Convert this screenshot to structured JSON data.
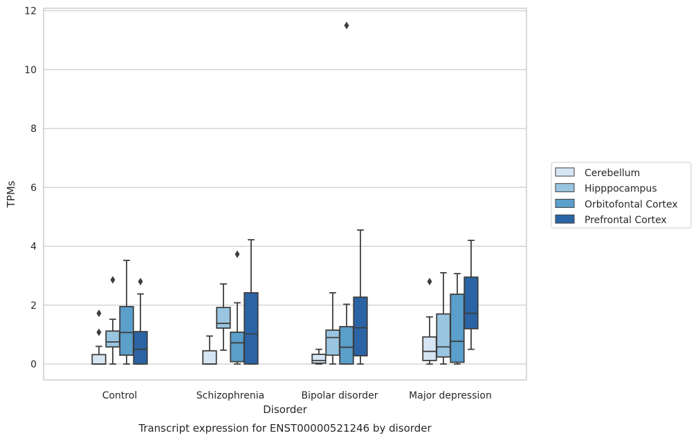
{
  "chart_data": {
    "type": "boxplot",
    "xlabel": "Disorder",
    "ylabel": "TPMs",
    "caption": "Transcript expression for ENST00000521246 by disorder",
    "ylim": [
      -0.55,
      12.1
    ],
    "yticks": [
      0,
      2,
      4,
      6,
      8,
      10,
      12
    ],
    "grid": "horizontal",
    "legend_position": "right",
    "categories": [
      "Control",
      "Schizophrenia",
      "Bipolar disorder",
      "Major depression"
    ],
    "series": [
      {
        "name": "Cerebellum",
        "color": "#d6e5f3",
        "boxes": [
          {
            "whisker_low": 0,
            "q1": 0,
            "median": 0,
            "q3": 0.32,
            "whisker_high": 0.6,
            "outliers": [
              1.08,
              1.72
            ]
          },
          {
            "whisker_low": 0,
            "q1": 0,
            "median": 0,
            "q3": 0.45,
            "whisker_high": 0.95,
            "outliers": []
          },
          {
            "whisker_low": 0,
            "q1": 0.03,
            "median": 0.12,
            "q3": 0.33,
            "whisker_high": 0.5,
            "outliers": []
          },
          {
            "whisker_low": 0,
            "q1": 0.12,
            "median": 0.43,
            "q3": 0.92,
            "whisker_high": 1.6,
            "outliers": [
              2.8
            ]
          }
        ]
      },
      {
        "name": "Hipppocampus",
        "color": "#9ac5e0",
        "boxes": [
          {
            "whisker_low": 0,
            "q1": 0.58,
            "median": 0.75,
            "q3": 1.12,
            "whisker_high": 1.52,
            "outliers": [
              2.86
            ]
          },
          {
            "whisker_low": 0.47,
            "q1": 1.22,
            "median": 1.38,
            "q3": 1.92,
            "whisker_high": 2.72,
            "outliers": []
          },
          {
            "whisker_low": 0,
            "q1": 0.3,
            "median": 0.9,
            "q3": 1.15,
            "whisker_high": 2.42,
            "outliers": []
          },
          {
            "whisker_low": 0,
            "q1": 0.24,
            "median": 0.58,
            "q3": 1.7,
            "whisker_high": 3.1,
            "outliers": []
          }
        ]
      },
      {
        "name": "Orbitofontal Cortex",
        "color": "#5b9fcb",
        "boxes": [
          {
            "whisker_low": 0,
            "q1": 0.3,
            "median": 1.07,
            "q3": 1.95,
            "whisker_high": 3.52,
            "outliers": []
          },
          {
            "whisker_low": 0,
            "q1": 0.08,
            "median": 0.72,
            "q3": 1.08,
            "whisker_high": 2.08,
            "outliers": [
              3.73
            ]
          },
          {
            "whisker_low": 0,
            "q1": 0,
            "median": 0.57,
            "q3": 1.27,
            "whisker_high": 2.03,
            "outliers": [
              11.5
            ]
          },
          {
            "whisker_low": 0,
            "q1": 0.06,
            "median": 0.77,
            "q3": 2.37,
            "whisker_high": 3.07,
            "outliers": []
          }
        ]
      },
      {
        "name": "Prefrontal Cortex",
        "color": "#2a64a5",
        "boxes": [
          {
            "whisker_low": 0,
            "q1": 0,
            "median": 0.5,
            "q3": 1.1,
            "whisker_high": 2.38,
            "outliers": [
              2.8
            ]
          },
          {
            "whisker_low": 0,
            "q1": 0,
            "median": 1.02,
            "q3": 2.42,
            "whisker_high": 4.22,
            "outliers": []
          },
          {
            "whisker_low": 0,
            "q1": 0.28,
            "median": 1.23,
            "q3": 2.27,
            "whisker_high": 4.55,
            "outliers": []
          },
          {
            "whisker_low": 0.5,
            "q1": 1.2,
            "median": 1.72,
            "q3": 2.95,
            "whisker_high": 4.2,
            "outliers": []
          }
        ]
      }
    ]
  }
}
